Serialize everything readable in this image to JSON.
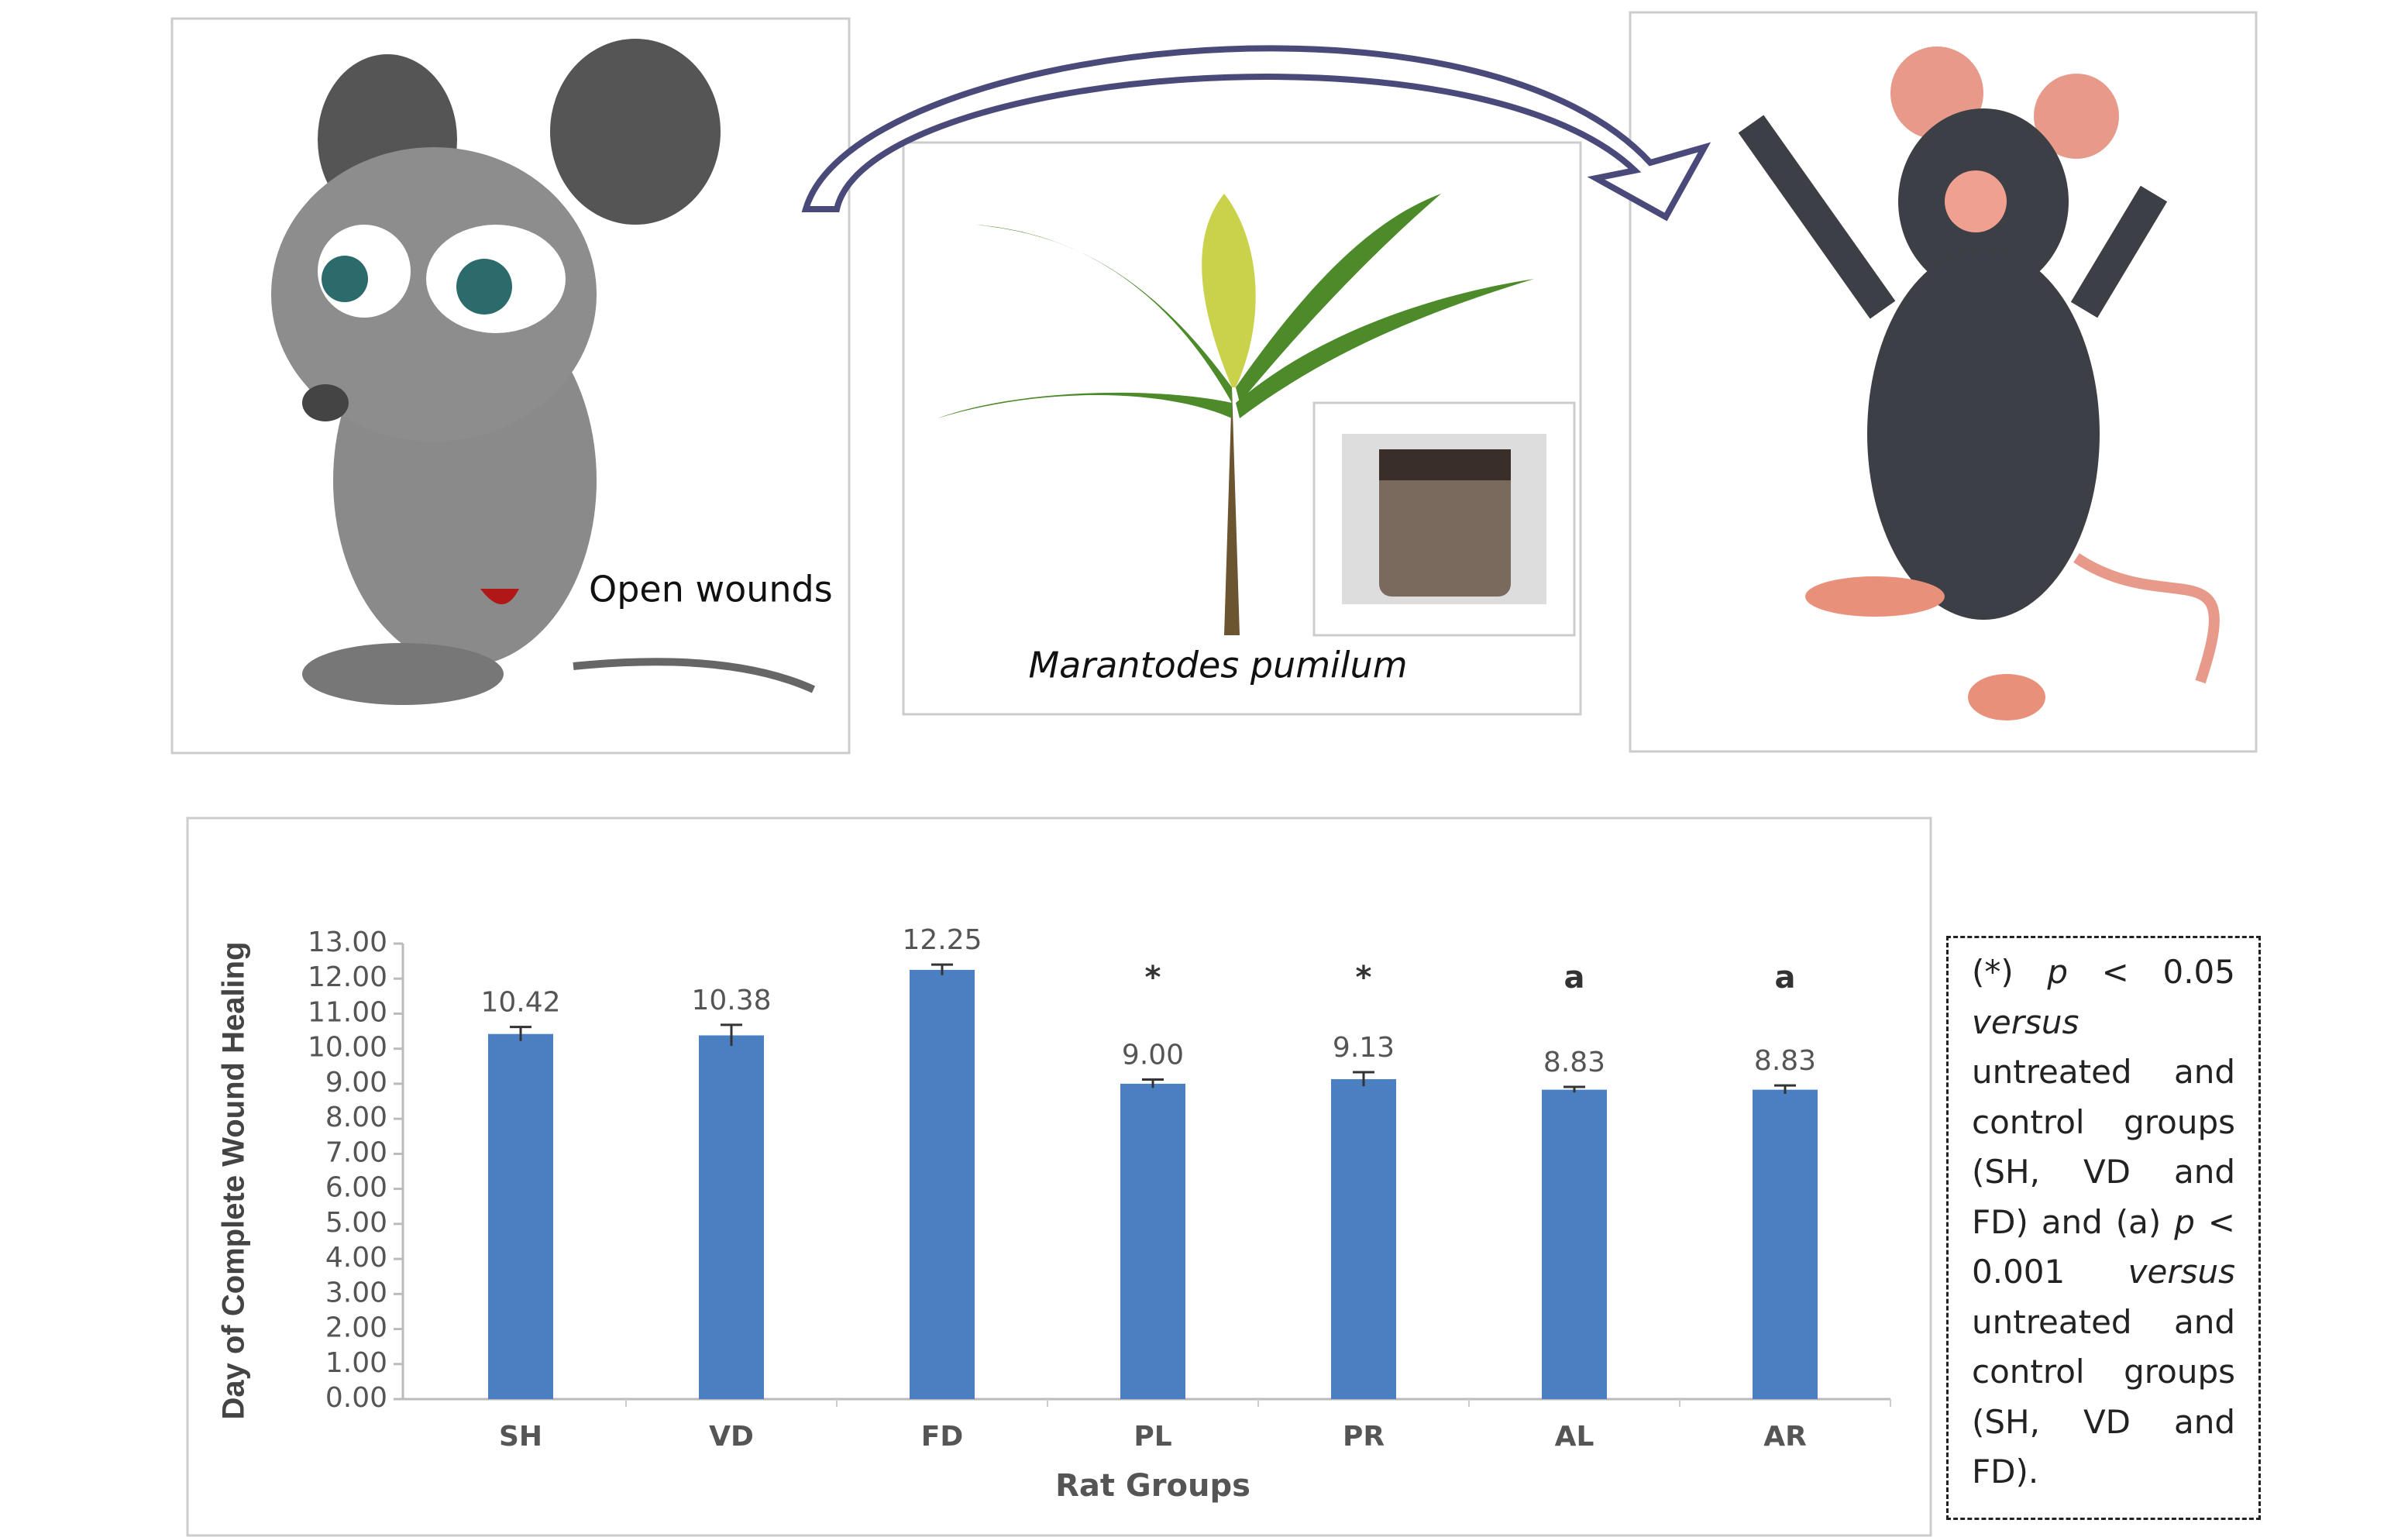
{
  "captions": {
    "left": "Open wounds",
    "middle": "Marantodes pumilum"
  },
  "note": [
    {
      "text": "(*) ",
      "italic": false
    },
    {
      "text": "p",
      "italic": true
    },
    {
      "text": " < 0.05 ",
      "italic": false
    },
    {
      "text": "versus",
      "italic": true
    },
    {
      "text": " untreated and control groups (SH, VD and FD) and (a) ",
      "italic": false
    },
    {
      "text": "p",
      "italic": true
    },
    {
      "text": " < 0.001 ",
      "italic": false
    },
    {
      "text": "versus",
      "italic": true
    },
    {
      "text": " untreated and control groups (SH, VD and FD).",
      "italic": false
    }
  ],
  "chart_data": {
    "type": "bar",
    "y_label": "Day of Complete Wound Healing",
    "x_label": "Rat Groups",
    "categories": [
      "SH",
      "VD",
      "FD",
      "PL",
      "PR",
      "AL",
      "AR"
    ],
    "values": [
      10.42,
      10.38,
      12.25,
      9.0,
      9.13,
      8.83,
      8.83
    ],
    "value_labels": [
      "10.42",
      "10.38",
      "12.25",
      "9.00",
      "9.13",
      "8.83",
      "8.83"
    ],
    "errors": [
      0.2,
      0.3,
      0.15,
      0.12,
      0.2,
      0.08,
      0.12
    ],
    "significance": [
      null,
      null,
      null,
      "*",
      "*",
      "a",
      "a"
    ],
    "color": "#4a7fc1",
    "ylim": [
      0,
      13
    ],
    "yticks": [
      {
        "value": 0,
        "label": "0.00"
      },
      {
        "value": 1,
        "label": "1.00"
      },
      {
        "value": 2,
        "label": "2.00"
      },
      {
        "value": 3,
        "label": "3.00"
      },
      {
        "value": 4,
        "label": "4.00"
      },
      {
        "value": 5,
        "label": "5.00"
      },
      {
        "value": 6,
        "label": "6.00"
      },
      {
        "value": 7,
        "label": "7.00"
      },
      {
        "value": 8,
        "label": "8.00"
      },
      {
        "value": 9,
        "label": "9.00"
      },
      {
        "value": 10,
        "label": "10.00"
      },
      {
        "value": 11,
        "label": "11.00"
      },
      {
        "value": 12,
        "label": "12.00"
      },
      {
        "value": 13,
        "label": "13.00"
      }
    ]
  }
}
